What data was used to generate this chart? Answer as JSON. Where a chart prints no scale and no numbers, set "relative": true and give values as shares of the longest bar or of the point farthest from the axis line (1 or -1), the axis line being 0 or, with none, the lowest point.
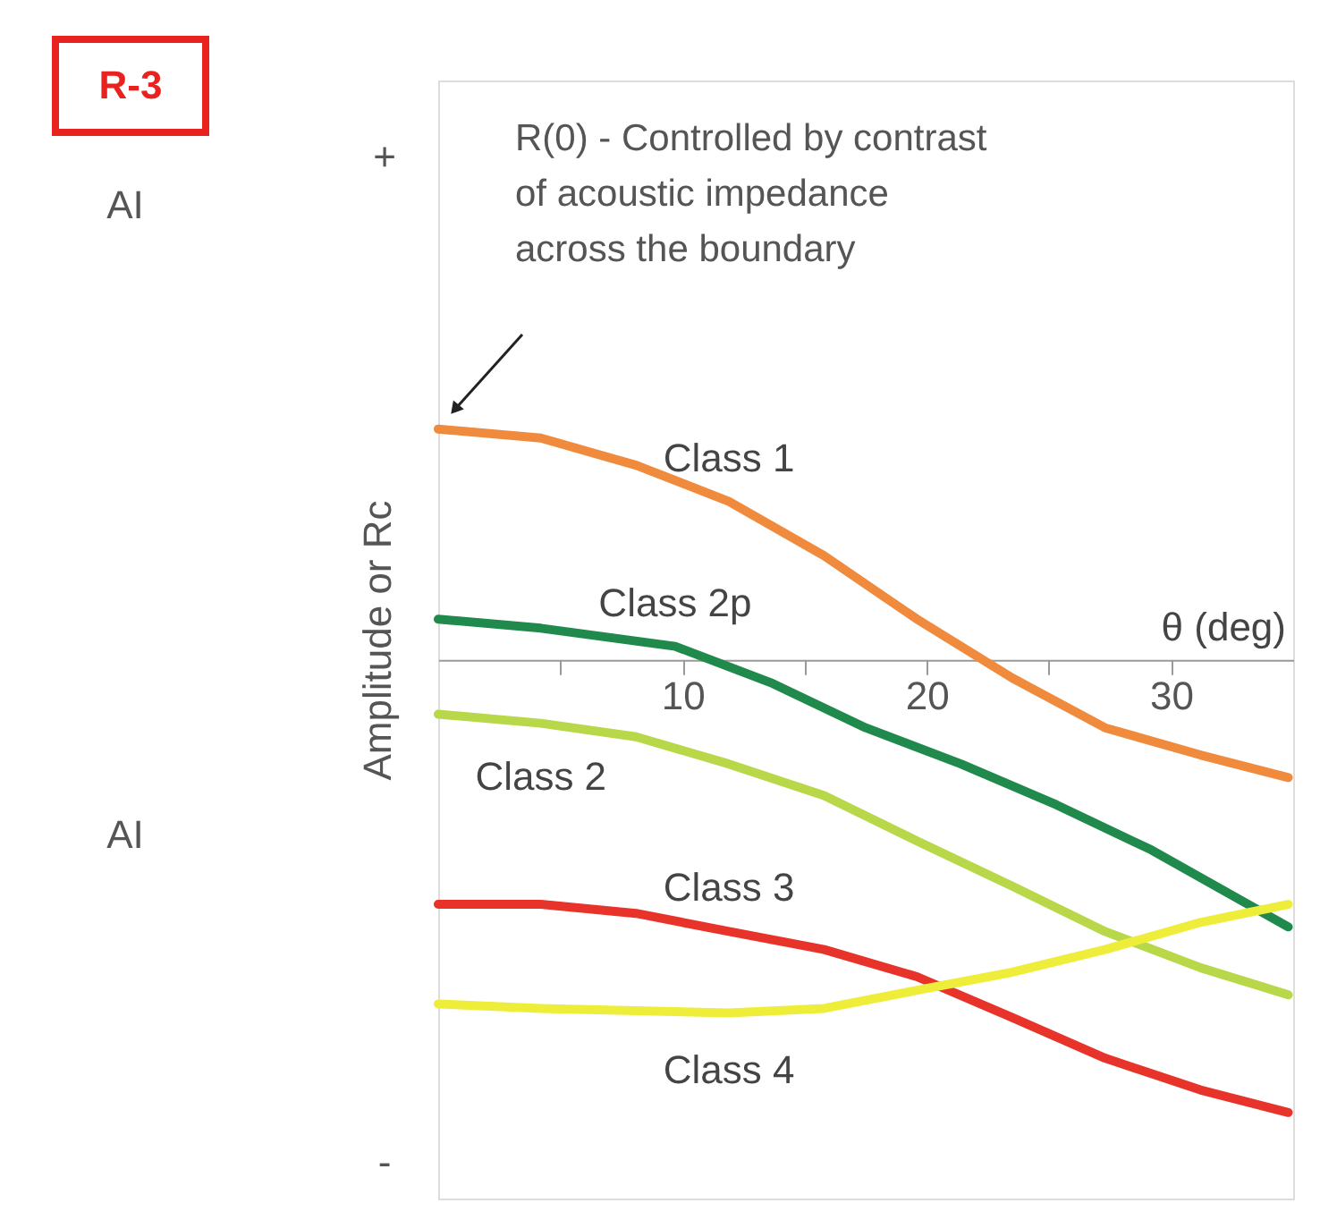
{
  "chart_data": {
    "type": "line",
    "relative": true,
    "xlabel": "θ (deg)",
    "ylabel": "Amplitude or Rc",
    "xlim": [
      0,
      35
    ],
    "xticks": [
      {
        "value": 5,
        "label": null
      },
      10,
      {
        "value": 15,
        "label": null
      },
      20,
      {
        "value": 25,
        "label": null
      },
      30
    ],
    "x": [
      0,
      4.2,
      8.1,
      11.9,
      15.8,
      19.6,
      23.5,
      27.3,
      31.2,
      34.8
    ],
    "series": [
      {
        "name": "Class 1",
        "color": "#f08a3c",
        "values": [
          0.51,
          0.49,
          0.43,
          0.35,
          0.23,
          0.09,
          -0.04,
          -0.15,
          -0.21,
          -0.26
        ]
      },
      {
        "name": "Class 2p",
        "color": "#1f8a4c",
        "x": [
          0,
          4.2,
          9.7,
          13.6,
          17.5,
          21.4,
          25.3,
          29.2,
          34.8
        ],
        "values": [
          0.09,
          0.07,
          0.03,
          -0.05,
          -0.15,
          -0.23,
          -0.32,
          -0.42,
          -0.59
        ]
      },
      {
        "name": "Class 2",
        "color": "#b8d84a",
        "values": [
          -0.12,
          -0.14,
          -0.17,
          -0.23,
          -0.3,
          -0.4,
          -0.5,
          -0.6,
          -0.68,
          -0.74
        ]
      },
      {
        "name": "Class 3",
        "color": "#e8332a",
        "values": [
          -0.54,
          -0.54,
          -0.56,
          -0.6,
          -0.64,
          -0.7,
          -0.79,
          -0.88,
          -0.95,
          -1
        ]
      },
      {
        "name": "Class 4",
        "color": "#eeee3a",
        "x": [
          0,
          4.2,
          11.9,
          15.8,
          19.6,
          23.5,
          27.3,
          31.2,
          34.8
        ],
        "values": [
          -0.76,
          -0.77,
          -0.78,
          -0.77,
          -0.73,
          -0.69,
          -0.64,
          -0.58,
          -0.54
        ]
      }
    ],
    "annotations": [
      "R-3",
      "AI",
      "AI",
      "+",
      "-",
      "R(0) - Controlled by contrast\nof acoustic impedance\nacross the boundary"
    ],
    "legend": false,
    "tick_labels": "x"
  }
}
